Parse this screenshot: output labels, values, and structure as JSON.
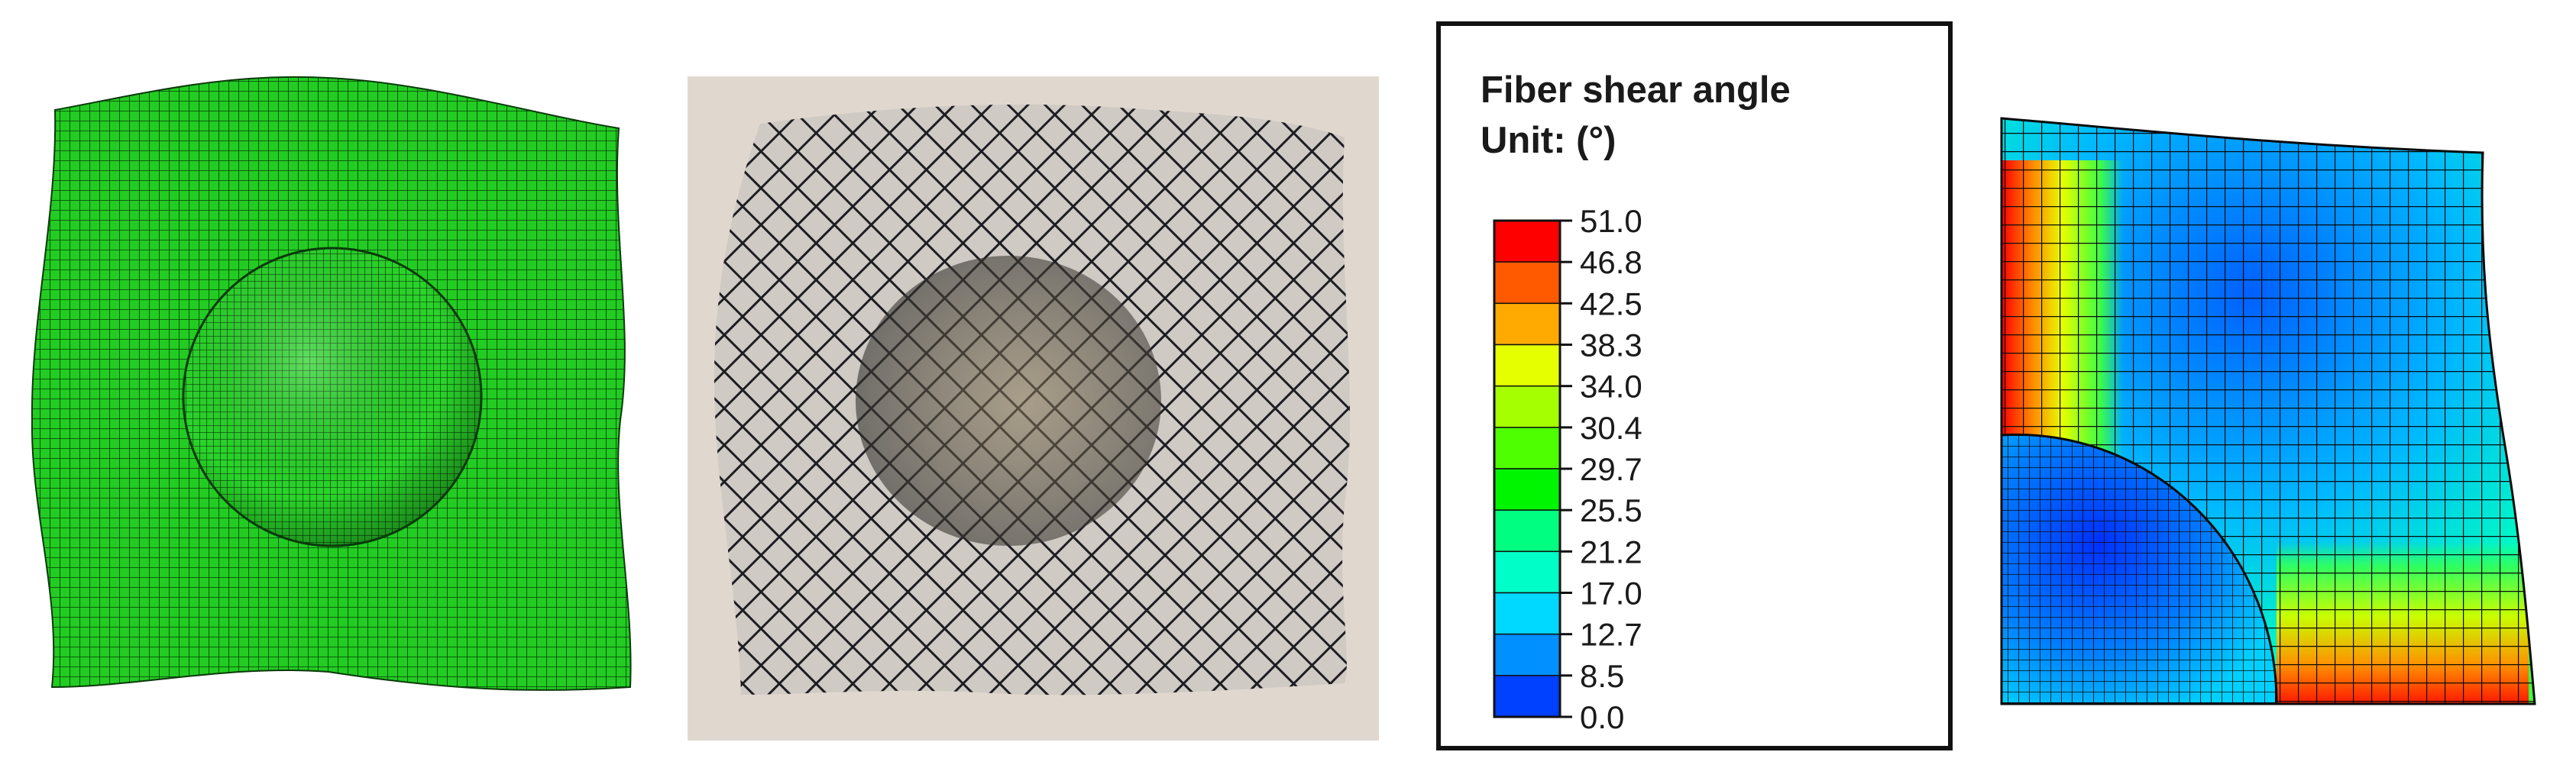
{
  "figure": {
    "panels": [
      {
        "id": "simulation-mesh",
        "description": "deformed woven fabric mesh (green) over hemispherical punch"
      },
      {
        "id": "experiment-photo",
        "description": "formed carbon fabric sample photograph"
      },
      {
        "id": "shear-angle-legend"
      },
      {
        "id": "shear-angle-contour",
        "description": "quarter model contour of fiber shear angle"
      }
    ]
  },
  "legend": {
    "title_line1": "Fiber shear angle",
    "title_line2": "Unit: (°)",
    "levels": [
      {
        "label": "51.0",
        "color": "#ff0000"
      },
      {
        "label": "46.8",
        "color": "#ff5a00"
      },
      {
        "label": "42.5",
        "color": "#ffaa00"
      },
      {
        "label": "38.3",
        "color": "#e6ff00"
      },
      {
        "label": "34.0",
        "color": "#a6ff00"
      },
      {
        "label": "30.4",
        "color": "#4dff00"
      },
      {
        "label": "29.7",
        "color": "#00f500"
      },
      {
        "label": "25.5",
        "color": "#00ff80"
      },
      {
        "label": "21.2",
        "color": "#00ffc8"
      },
      {
        "label": "17.0",
        "color": "#00d9ff"
      },
      {
        "label": "12.7",
        "color": "#0090ff"
      },
      {
        "label": "8.5",
        "color": "#0040ff"
      },
      {
        "label": "0.0",
        "color": "#0000ff"
      }
    ]
  },
  "colors": {
    "mesh_green": "#22cc22",
    "mesh_line": "#0a3a0a",
    "photo_background": "#e0d8cf",
    "legend_border": "#111111"
  }
}
